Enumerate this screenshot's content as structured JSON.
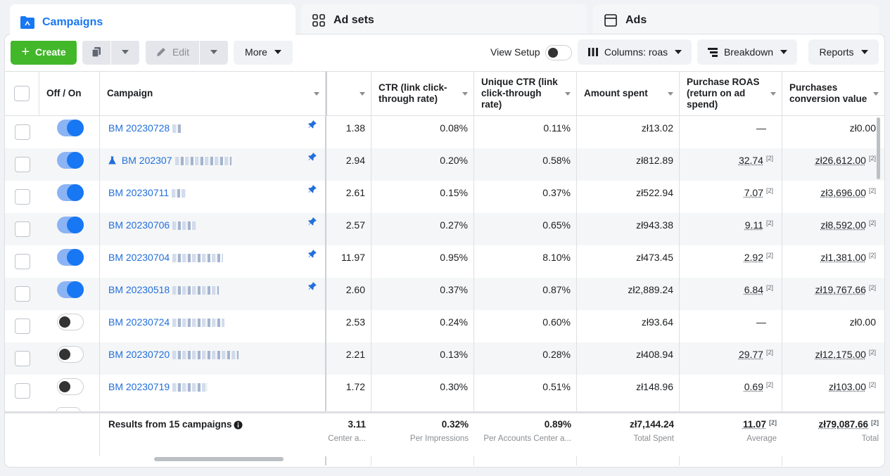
{
  "tabs": [
    {
      "label": "Campaigns",
      "icon": "folder-icon"
    },
    {
      "label": "Ad sets",
      "icon": "grid-icon"
    },
    {
      "label": "Ads",
      "icon": "window-icon"
    }
  ],
  "toolbar": {
    "create_label": "Create",
    "edit_label": "Edit",
    "more_label": "More",
    "view_setup_label": "View Setup",
    "columns_label": "Columns: roas",
    "breakdown_label": "Breakdown",
    "reports_label": "Reports"
  },
  "columns": {
    "off_on": "Off / On",
    "campaign": "Campaign",
    "ctr": "CTR (link click-through rate)",
    "unique_ctr": "Unique CTR (link click-through rate)",
    "amount_spent": "Amount spent",
    "purchase_roas": "Purchase ROAS (return on ad spend)",
    "purchases_value": "Purchases conversion value"
  },
  "rows": [
    {
      "name": "BM 20230728",
      "on": true,
      "pinned": true,
      "flask": false,
      "c1": "1.38",
      "ctr": "0.08%",
      "uctr": "0.11%",
      "spent": "zł13.02",
      "roas": "—",
      "value": "zł0.00",
      "roas_sup": "",
      "value_sup": ""
    },
    {
      "name": "BM 202307",
      "on": true,
      "pinned": true,
      "flask": true,
      "c1": "2.94",
      "ctr": "0.20%",
      "uctr": "0.58%",
      "spent": "zł812.89",
      "roas": "32.74",
      "value": "zł26,612.00",
      "roas_sup": "[2]",
      "value_sup": "[2]"
    },
    {
      "name": "BM 20230711",
      "on": true,
      "pinned": true,
      "flask": false,
      "c1": "2.61",
      "ctr": "0.15%",
      "uctr": "0.37%",
      "spent": "zł522.94",
      "roas": "7.07",
      "value": "zł3,696.00",
      "roas_sup": "[2]",
      "value_sup": "[2]"
    },
    {
      "name": "BM 20230706",
      "on": true,
      "pinned": true,
      "flask": false,
      "c1": "2.57",
      "ctr": "0.27%",
      "uctr": "0.65%",
      "spent": "zł943.38",
      "roas": "9.11",
      "value": "zł8,592.00",
      "roas_sup": "[2]",
      "value_sup": "[2]"
    },
    {
      "name": "BM 20230704",
      "on": true,
      "pinned": true,
      "flask": false,
      "c1": "11.97",
      "ctr": "0.95%",
      "uctr": "8.10%",
      "spent": "zł473.45",
      "roas": "2.92",
      "value": "zł1,381.00",
      "roas_sup": "[2]",
      "value_sup": "[2]"
    },
    {
      "name": "BM 20230518",
      "on": true,
      "pinned": true,
      "flask": false,
      "c1": "2.60",
      "ctr": "0.37%",
      "uctr": "0.87%",
      "spent": "zł2,889.24",
      "roas": "6.84",
      "value": "zł19,767.66",
      "roas_sup": "[2]",
      "value_sup": "[2]"
    },
    {
      "name": "BM 20230724",
      "on": false,
      "pinned": false,
      "flask": false,
      "c1": "2.53",
      "ctr": "0.24%",
      "uctr": "0.60%",
      "spent": "zł93.64",
      "roas": "—",
      "value": "zł0.00",
      "roas_sup": "",
      "value_sup": ""
    },
    {
      "name": "BM 20230720",
      "on": false,
      "pinned": false,
      "flask": false,
      "c1": "2.21",
      "ctr": "0.13%",
      "uctr": "0.28%",
      "spent": "zł408.94",
      "roas": "29.77",
      "value": "zł12,175.00",
      "roas_sup": "[2]",
      "value_sup": "[2]"
    },
    {
      "name": "BM 20230719",
      "on": false,
      "pinned": false,
      "flask": false,
      "c1": "1.72",
      "ctr": "0.30%",
      "uctr": "0.51%",
      "spent": "zł148.96",
      "roas": "0.69",
      "value": "zł103.00",
      "roas_sup": "[2]",
      "value_sup": "[2]"
    }
  ],
  "footer": {
    "results_label": "Results from 15 campaigns",
    "c1": {
      "value": "3.11",
      "sub": "Center a..."
    },
    "ctr": {
      "value": "0.32%",
      "sub": "Per Impressions"
    },
    "uctr": {
      "value": "0.89%",
      "sub": "Per Accounts Center a..."
    },
    "spent": {
      "value": "zł7,144.24",
      "sub": "Total Spent"
    },
    "roas": {
      "value": "11.07",
      "sup": "[2]",
      "sub": "Average"
    },
    "value": {
      "value": "zł79,087.66",
      "sup": "[2]",
      "sub": "Total"
    }
  },
  "colors": {
    "accent": "#1877f2",
    "create": "#42b72a",
    "link": "#216fdb"
  }
}
